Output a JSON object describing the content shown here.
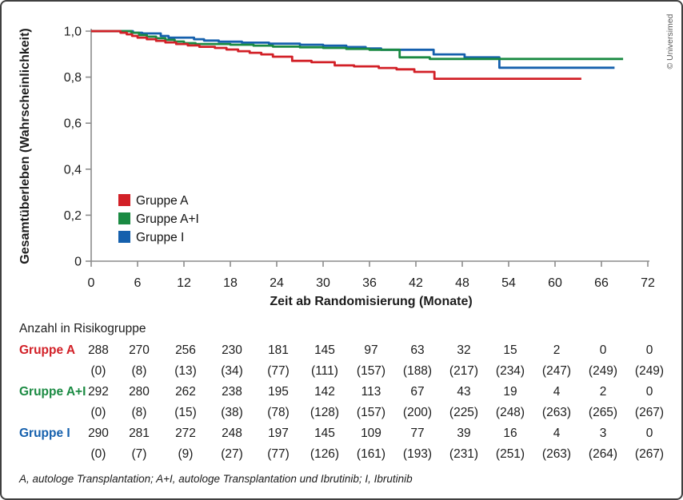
{
  "credit": {
    "text": "© Universimed"
  },
  "footnote": "A, autologe Transplantation; A+I, autologe Transplantation und Ibrutinib; I, Ibrutinib",
  "colors": {
    "axis": "#8c8c8c",
    "text": "#1c1c1c",
    "red": "#d22027",
    "green": "#1a8a42",
    "blue": "#1560ad",
    "credit": "#5a5a5a"
  },
  "chart_data": {
    "type": "line",
    "subtype": "kaplan-meier-step",
    "title": "",
    "ylabel": "Gesamtüberleben (Wahrscheinlichkeit)",
    "xlabel": "Zeit ab Randomisierung (Monate)",
    "xlim": [
      0,
      72
    ],
    "ylim": [
      0,
      1
    ],
    "grid": false,
    "legend_position": "inside-lower-left",
    "x_ticks": [
      0,
      6,
      12,
      18,
      24,
      30,
      36,
      42,
      48,
      54,
      60,
      66,
      72
    ],
    "y_tick_labels": [
      "1,0",
      "0,8",
      "0,6",
      "0,4",
      "0,2",
      "0"
    ],
    "y_tick_values": [
      1.0,
      0.8,
      0.6,
      0.4,
      0.2,
      0
    ],
    "series": [
      {
        "name": "Gruppe A",
        "color": "#d22027",
        "steps": [
          [
            0,
            1.0
          ],
          [
            3.8,
            0.993
          ],
          [
            4.6,
            0.986
          ],
          [
            5.3,
            0.979
          ],
          [
            6.0,
            0.972
          ],
          [
            7.2,
            0.965
          ],
          [
            8.4,
            0.958
          ],
          [
            9.6,
            0.951
          ],
          [
            11.0,
            0.944
          ],
          [
            12.5,
            0.938
          ],
          [
            14.0,
            0.932
          ],
          [
            16.0,
            0.927
          ],
          [
            17.5,
            0.92
          ],
          [
            19.0,
            0.913
          ],
          [
            20.5,
            0.906
          ],
          [
            22.0,
            0.899
          ],
          [
            23.5,
            0.889
          ],
          [
            26.0,
            0.871
          ],
          [
            28.5,
            0.865
          ],
          [
            31.5,
            0.851
          ],
          [
            34.0,
            0.847
          ],
          [
            37.2,
            0.84
          ],
          [
            39.5,
            0.834
          ],
          [
            41.8,
            0.823
          ],
          [
            44.4,
            0.793
          ],
          [
            63.4,
            0.793
          ]
        ]
      },
      {
        "name": "Gruppe A+I",
        "color": "#1a8a42",
        "steps": [
          [
            0,
            1.0
          ],
          [
            5.2,
            0.993
          ],
          [
            6.2,
            0.983
          ],
          [
            7.2,
            0.976
          ],
          [
            8.4,
            0.969
          ],
          [
            9.6,
            0.962
          ],
          [
            10.8,
            0.955
          ],
          [
            12.0,
            0.948
          ],
          [
            13.5,
            0.944
          ],
          [
            18.0,
            0.941
          ],
          [
            21.0,
            0.937
          ],
          [
            23.5,
            0.933
          ],
          [
            27.0,
            0.93
          ],
          [
            30.0,
            0.927
          ],
          [
            33.0,
            0.923
          ],
          [
            36.0,
            0.919
          ],
          [
            39.9,
            0.886
          ],
          [
            43.8,
            0.879
          ],
          [
            68.8,
            0.879
          ]
        ]
      },
      {
        "name": "Gruppe I",
        "color": "#1560ad",
        "steps": [
          [
            0,
            1.0
          ],
          [
            5.4,
            0.993
          ],
          [
            6.6,
            0.99
          ],
          [
            9.0,
            0.979
          ],
          [
            10.0,
            0.972
          ],
          [
            13.3,
            0.965
          ],
          [
            14.6,
            0.959
          ],
          [
            16.5,
            0.954
          ],
          [
            19.5,
            0.95
          ],
          [
            23.0,
            0.946
          ],
          [
            27.0,
            0.941
          ],
          [
            30.0,
            0.937
          ],
          [
            33.0,
            0.931
          ],
          [
            35.5,
            0.925
          ],
          [
            37.5,
            0.919
          ],
          [
            44.3,
            0.899
          ],
          [
            48.3,
            0.886
          ],
          [
            52.8,
            0.841
          ],
          [
            67.7,
            0.841
          ]
        ]
      }
    ]
  },
  "risk_table": {
    "header": "Anzahl in Risikogruppe",
    "columns": [
      0,
      6,
      12,
      18,
      24,
      30,
      36,
      42,
      48,
      54,
      60,
      66,
      72
    ],
    "rows": [
      {
        "label": "Gruppe A",
        "color": "#d22027",
        "at_risk": [
          "288",
          "270",
          "256",
          "230",
          "181",
          "145",
          "97",
          "63",
          "32",
          "15",
          "2",
          "0",
          "0"
        ],
        "events": [
          "(0)",
          "(8)",
          "(13)",
          "(34)",
          "(77)",
          "(111)",
          "(157)",
          "(188)",
          "(217)",
          "(234)",
          "(247)",
          "(249)",
          "(249)"
        ]
      },
      {
        "label": "Gruppe A+I",
        "color": "#1a8a42",
        "at_risk": [
          "292",
          "280",
          "262",
          "238",
          "195",
          "142",
          "113",
          "67",
          "43",
          "19",
          "4",
          "2",
          "0"
        ],
        "events": [
          "(0)",
          "(8)",
          "(15)",
          "(38)",
          "(78)",
          "(128)",
          "(157)",
          "(200)",
          "(225)",
          "(248)",
          "(263)",
          "(265)",
          "(267)"
        ]
      },
      {
        "label": "Gruppe I",
        "color": "#1560ad",
        "at_risk": [
          "290",
          "281",
          "272",
          "248",
          "197",
          "145",
          "109",
          "77",
          "39",
          "16",
          "4",
          "3",
          "0"
        ],
        "events": [
          "(0)",
          "(7)",
          "(9)",
          "(27)",
          "(77)",
          "(126)",
          "(161)",
          "(193)",
          "(231)",
          "(251)",
          "(263)",
          "(264)",
          "(267)"
        ]
      }
    ]
  }
}
